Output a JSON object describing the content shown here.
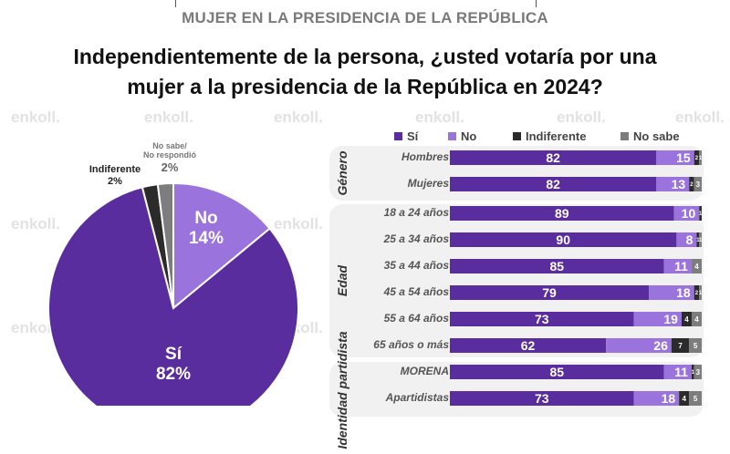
{
  "header": {
    "subtitle": "MUJER EN LA PRESIDENCIA DE LA REPÚBLICA",
    "title_line1": "Independientemente de la persona, ¿usted votaría por una",
    "title_line2": "mujer a la presidencia de la República en 2024?"
  },
  "watermark": "enkoll.",
  "colors": {
    "si": "#5a2d9f",
    "no": "#9a73dc",
    "indiferente": "#2b2b2b",
    "no_sabe": "#7d7d7d",
    "group_bg": "#f1f1f1"
  },
  "chart_data": [
    {
      "type": "pie",
      "title": "",
      "slices": [
        {
          "label": "Sí",
          "value": 82,
          "display": "82%"
        },
        {
          "label": "No",
          "value": 14,
          "display": "14%"
        },
        {
          "label": "No sabe/ No respondió",
          "value": 2,
          "display": "2%"
        },
        {
          "label": "Indiferente",
          "value": 2,
          "display": "2%"
        }
      ],
      "slice_labels": {
        "si_name": "Sí",
        "si_pct": "82%",
        "no_name": "No",
        "no_pct": "14%",
        "ind_name": "Indiferente",
        "ind_pct": "2%",
        "ns_name_1": "No sabe/",
        "ns_name_2": "No respondió",
        "ns_pct": "2%"
      }
    },
    {
      "type": "bar",
      "orientation": "horizontal-stacked-100",
      "legend": {
        "position": "top",
        "entries": [
          "Sí",
          "No",
          "Indiferente",
          "No sabe"
        ]
      },
      "series_names": [
        "Sí",
        "No",
        "Indiferente",
        "No sabe"
      ],
      "groups": [
        {
          "name": "Género",
          "rows": [
            {
              "label": "Hombres",
              "values": [
                82,
                15,
                2,
                1
              ]
            },
            {
              "label": "Mujeres",
              "values": [
                82,
                13,
                2,
                3
              ]
            }
          ]
        },
        {
          "name": "Edad",
          "rows": [
            {
              "label": "18 a 24 años",
              "values": [
                89,
                10,
                1,
                0
              ]
            },
            {
              "label": "25 a 34 años",
              "values": [
                90,
                8,
                1,
                1
              ]
            },
            {
              "label": "35 a 44 años",
              "values": [
                85,
                11,
                0,
                4
              ]
            },
            {
              "label": "45 a 54 años",
              "values": [
                79,
                18,
                2,
                1
              ]
            },
            {
              "label": "55 a 64 años",
              "values": [
                73,
                19,
                4,
                4
              ]
            },
            {
              "label": "65 años o más",
              "values": [
                62,
                26,
                7,
                5
              ]
            }
          ]
        },
        {
          "name": "Identidad partidista",
          "rows": [
            {
              "label": "MORENA",
              "values": [
                85,
                11,
                1,
                3
              ]
            },
            {
              "label": "Apartidistas",
              "values": [
                73,
                18,
                4,
                5
              ]
            }
          ]
        }
      ],
      "xlim": [
        0,
        100
      ]
    }
  ]
}
